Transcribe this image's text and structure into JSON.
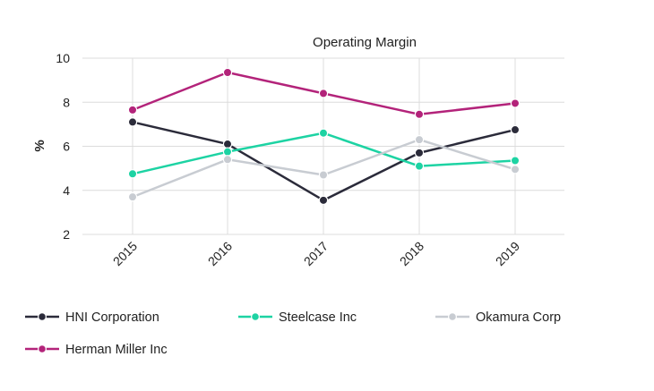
{
  "chart_data": {
    "type": "line",
    "title": "Operating Margin",
    "xlabel": "",
    "ylabel": "%",
    "categories": [
      "2015",
      "2016",
      "2017",
      "2018",
      "2019"
    ],
    "ylim": [
      2,
      10
    ],
    "yticks": [
      "2",
      "4",
      "6",
      "8",
      "10"
    ],
    "grid": true,
    "legend_position": "bottom",
    "series": [
      {
        "name": "HNI Corporation",
        "color": "#2b2b3a",
        "values": [
          7.1,
          6.1,
          3.55,
          5.7,
          6.75
        ]
      },
      {
        "name": "Steelcase Inc",
        "color": "#1dd3a3",
        "values": [
          4.75,
          5.75,
          6.6,
          5.1,
          5.35
        ]
      },
      {
        "name": "Okamura Corp",
        "color": "#c8ccd2",
        "values": [
          3.7,
          5.4,
          4.7,
          6.3,
          4.95
        ]
      },
      {
        "name": "Herman Miller Inc",
        "color": "#b3237a",
        "values": [
          7.65,
          9.35,
          8.4,
          7.45,
          7.95
        ]
      }
    ]
  }
}
